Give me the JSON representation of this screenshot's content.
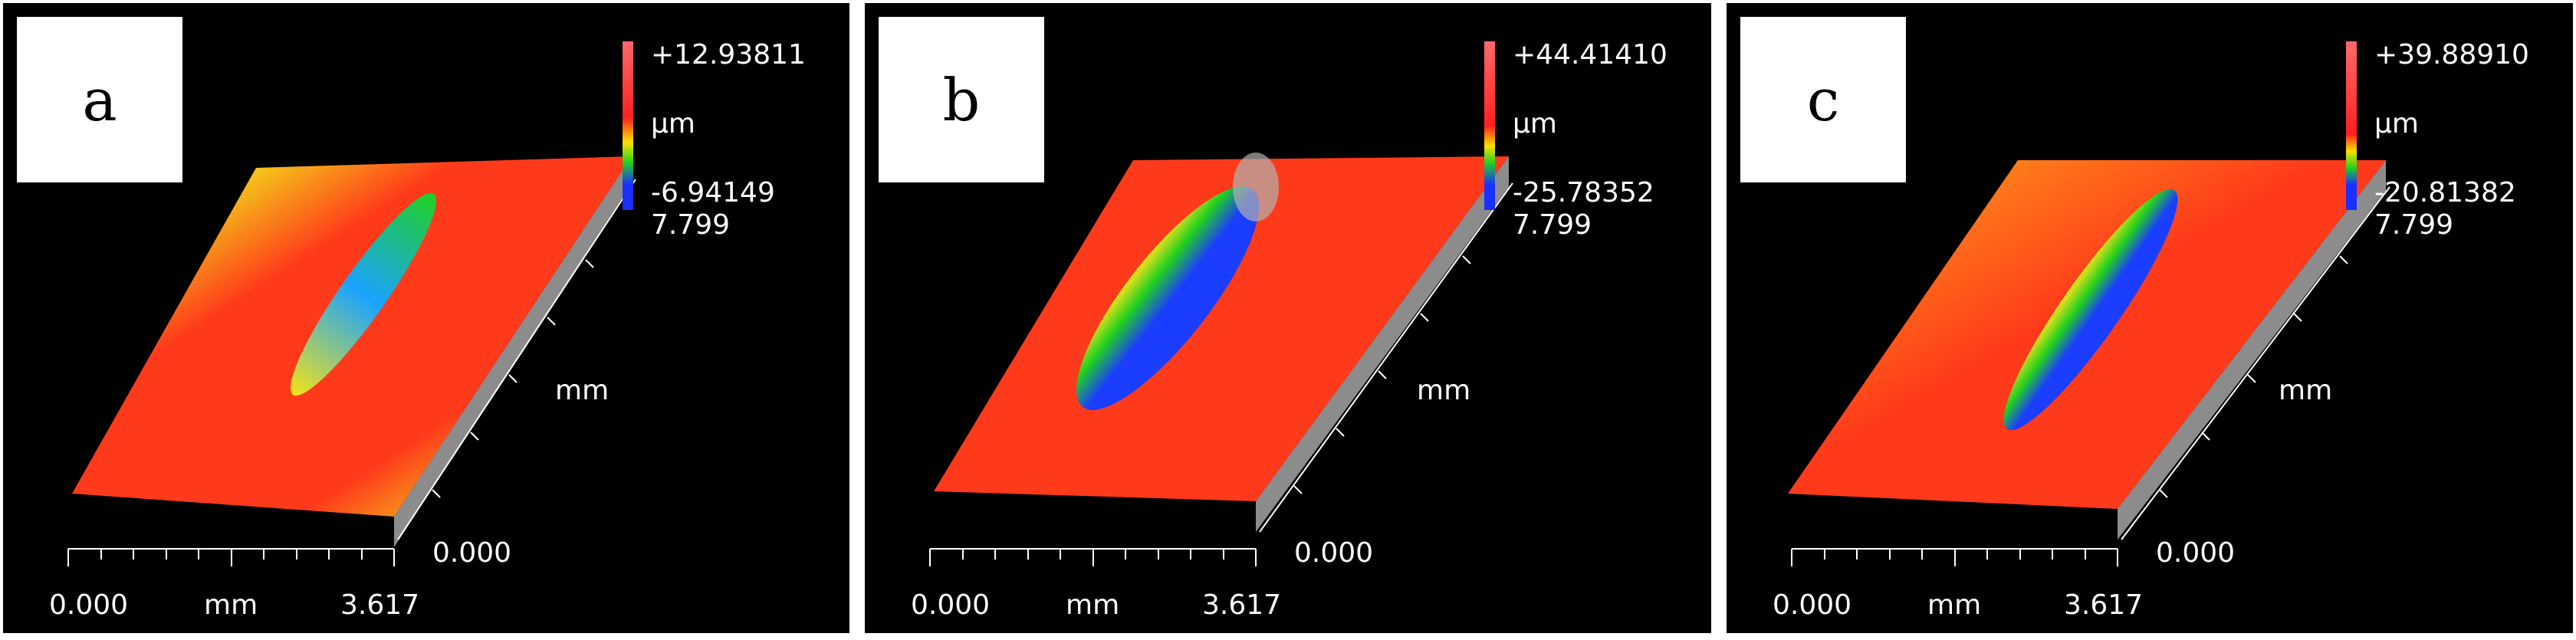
{
  "panels": [
    {
      "label": "a",
      "scale_max": "+12.93811",
      "scale_unit": "µm",
      "scale_min": "-6.94149",
      "depth_max": "7.799",
      "depth_unit": "mm",
      "depth_min": "0.000",
      "x_min": "0.000",
      "x_unit": "mm",
      "x_max": "3.617",
      "colors": {
        "surface": "#ff3a1a",
        "groove": "#1aa3ff"
      }
    },
    {
      "label": "b",
      "scale_max": "+44.41410",
      "scale_unit": "µm",
      "scale_min": "-25.78352",
      "depth_max": "7.799",
      "depth_unit": "mm",
      "depth_min": "0.000",
      "x_min": "0.000",
      "x_unit": "mm",
      "x_max": "3.617",
      "colors": {
        "surface": "#ff3a1a",
        "groove": "#1a3dff"
      }
    },
    {
      "label": "c",
      "scale_max": "+39.88910",
      "scale_unit": "µm",
      "scale_min": "-20.81382",
      "depth_max": "7.799",
      "depth_unit": "mm",
      "depth_min": "0.000",
      "x_min": "0.000",
      "x_unit": "mm",
      "x_max": "3.617",
      "colors": {
        "surface": "#ff3a1a",
        "groove": "#1a3dff"
      }
    }
  ]
}
